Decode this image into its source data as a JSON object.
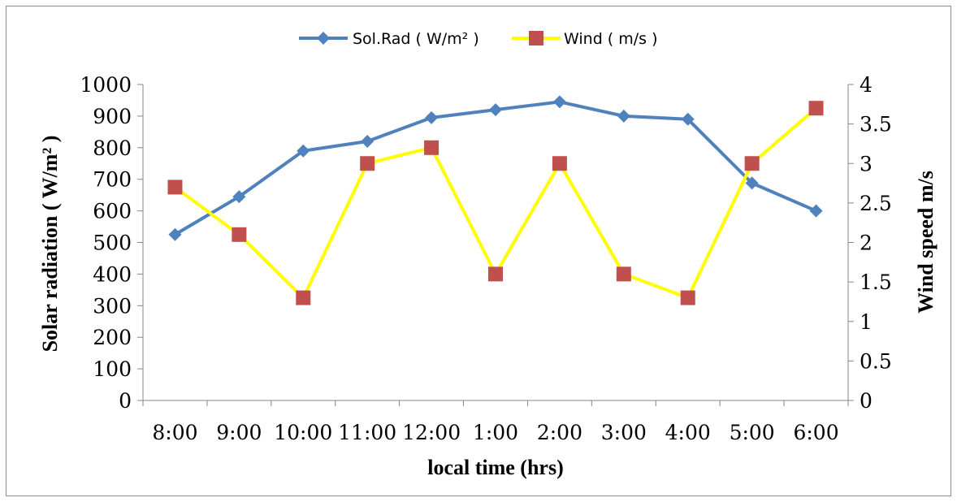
{
  "chart_data": {
    "type": "line",
    "categories": [
      "8:00",
      "9:00",
      "10:00",
      "11:00",
      "12:00",
      "1:00",
      "2:00",
      "3:00",
      "4:00",
      "5:00",
      "6:00"
    ],
    "xlabel": "local time (hrs)",
    "ylabel": "Solar radiation ( W/m² )",
    "y2label": "Wind speed m/s",
    "ylim": [
      0,
      1000
    ],
    "y_ticks": [
      "0",
      "100",
      "200",
      "300",
      "400",
      "500",
      "600",
      "700",
      "800",
      "900",
      "1000"
    ],
    "y2lim": [
      0,
      4
    ],
    "y2_ticks": [
      "0",
      "0.5",
      "1",
      "1.5",
      "2",
      "2.5",
      "3",
      "3.5",
      "4"
    ],
    "grid": false,
    "legend_position": "top",
    "series": [
      {
        "name": "Sol.Rad ( W/m² )",
        "axis": "left",
        "color": "#4f81bd",
        "marker": "diamond",
        "values": [
          525,
          645,
          790,
          820,
          895,
          920,
          945,
          900,
          890,
          688,
          600
        ]
      },
      {
        "name": "Wind ( m/s )",
        "axis": "right",
        "color": "#ffff00",
        "marker_color": "#c0504d",
        "marker": "square",
        "values": [
          2.7,
          2.1,
          1.3,
          3.0,
          3.2,
          1.6,
          3.0,
          1.6,
          1.3,
          3.0,
          3.7
        ]
      }
    ]
  }
}
